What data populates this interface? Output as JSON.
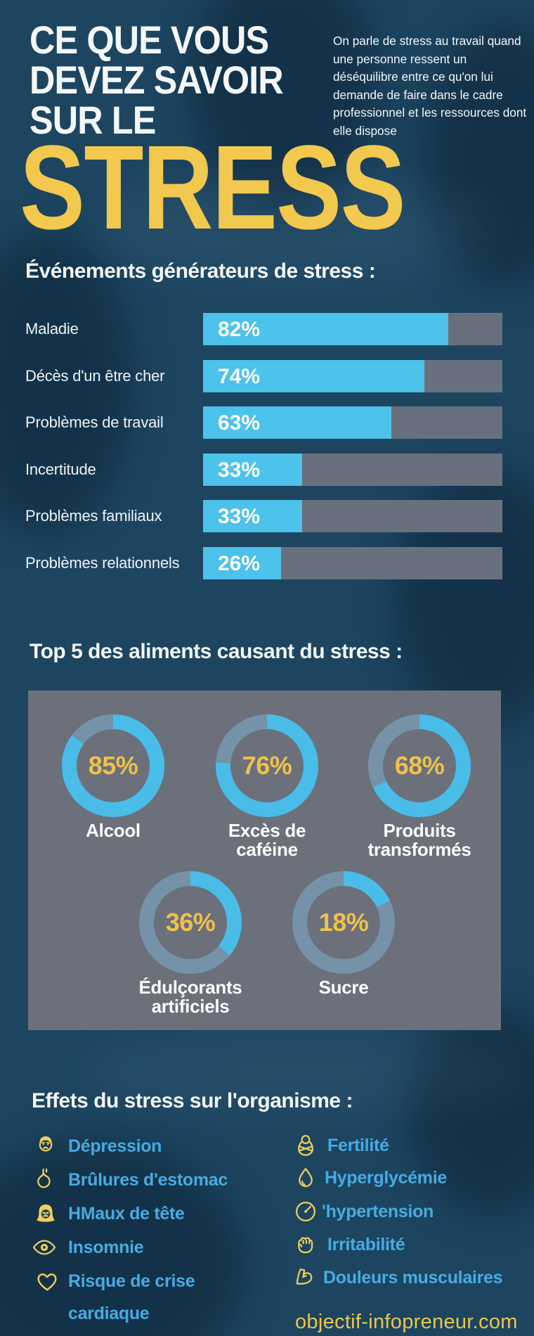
{
  "header": {
    "title_lines": [
      "CE QUE VOUS",
      "DEVEZ SAVOIR",
      "SUR LE"
    ],
    "highlight": "STRESS",
    "intro": "On parle de stress au travail quand une personne ressent un déséquilibre entre ce qu'on lui demande de faire dans le cadre professionnel et les ressources dont elle dispose"
  },
  "sections": {
    "events_title": "Événements générateurs de stress :",
    "foods_title": "Top 5 des aliments causant du  stress :",
    "effects_title": "Effets du stress sur l'organisme :"
  },
  "chart_data": [
    {
      "type": "bar",
      "orientation": "horizontal",
      "title": "Événements générateurs de stress :",
      "categories": [
        "Maladie",
        "Décès d'un être cher",
        "Problèmes de travail",
        "Incertitude",
        "Problèmes familiaux",
        "Problèmes relationnels"
      ],
      "values": [
        82,
        74,
        63,
        33,
        33,
        26
      ],
      "value_labels": [
        "82%",
        "74%",
        "63%",
        "33%",
        "33%",
        "26%"
      ],
      "xlim": [
        0,
        100
      ],
      "grid": false,
      "bar_color": "#4dc2ea",
      "track_color": "#68707e"
    },
    {
      "type": "donut",
      "title": "Top 5 des aliments causant du  stress :",
      "items": [
        {
          "label": "Alcool",
          "label_lines": [
            "Alcool"
          ],
          "value": 85,
          "display": "85%"
        },
        {
          "label": "Excès de caféine",
          "label_lines": [
            "Excès de",
            "caféine"
          ],
          "value": 76,
          "display": "76%"
        },
        {
          "label": "Produits transformés",
          "label_lines": [
            "Produits",
            "transformés"
          ],
          "value": 68,
          "display": "68%"
        },
        {
          "label": "Édulçorants artificiels",
          "label_lines": [
            "Édulçorants",
            "artificiels"
          ],
          "value": 36,
          "display": "36%"
        },
        {
          "label": "Sucre",
          "label_lines": [
            "Sucre"
          ],
          "value": 18,
          "display": "18%"
        }
      ],
      "ring_color": "#49bce8",
      "ring_rest_color": "#7592a8",
      "value_color": "#efc14b"
    }
  ],
  "effects": {
    "left": [
      {
        "icon": "sad-man-icon",
        "label": "Dépression"
      },
      {
        "icon": "stomach-icon",
        "label": "Brûlures d'estomac"
      },
      {
        "icon": "sad-woman-icon",
        "label": "HMaux de tête"
      },
      {
        "icon": "eye-icon",
        "label": "Insomnie"
      },
      {
        "icon": "heart-icon",
        "label": "Risque de crise cardiaque"
      }
    ],
    "right": [
      {
        "icon": "baby-icon",
        "label": "Fertilité"
      },
      {
        "icon": "drop-icon",
        "label": "Hyperglycémie"
      },
      {
        "icon": "gauge-icon",
        "label": "'hypertension"
      },
      {
        "icon": "fist-icon",
        "label": "Irritabilité"
      },
      {
        "icon": "muscle-icon",
        "label": "Douleurs musculaires"
      }
    ]
  },
  "footer": {
    "website": "objectif-infopreneur.com"
  },
  "colors": {
    "background": "#1d4560",
    "bar-fill": "#4dc2ea",
    "bar-track": "#68707e",
    "panel": "#6b707b",
    "donut-fill": "#49bce8",
    "donut-rest": "#7592a8",
    "yellow": "#f2c84e",
    "pct-yellow": "#efc14b",
    "text-blue": "#47abe2",
    "icon-yellow": "#eecf5d",
    "white": "#f4f7f9"
  }
}
